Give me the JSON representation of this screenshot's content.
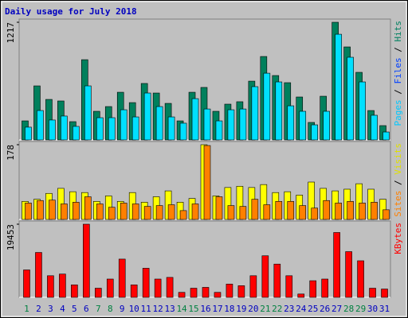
{
  "title": "Daily usage for July 2018",
  "chart_data": [
    {
      "type": "bar",
      "categories": [
        "1",
        "2",
        "3",
        "4",
        "5",
        "6",
        "7",
        "8",
        "9",
        "10",
        "11",
        "12",
        "13",
        "14",
        "15",
        "16",
        "17",
        "18",
        "19",
        "20",
        "21",
        "22",
        "23",
        "24",
        "25",
        "26",
        "27",
        "28",
        "29",
        "30",
        "31"
      ],
      "category_colors": [
        "#008040",
        "#0000c0",
        "#0000c0",
        "#0000c0",
        "#0000c0",
        "#0000c0",
        "#008040",
        "#008040",
        "#0000c0",
        "#0000c0",
        "#0000c0",
        "#0000c0",
        "#0000c0",
        "#008040",
        "#008040",
        "#0000c0",
        "#0000c0",
        "#0000c0",
        "#0000c0",
        "#0000c0",
        "#008040",
        "#008040",
        "#0000c0",
        "#0000c0",
        "#0000c0",
        "#0000c0",
        "#0000c0",
        "#008040",
        "#008040",
        "#0000c0",
        "#0000c0"
      ],
      "ylim": [
        0,
        1217
      ],
      "yticks": [
        1217
      ],
      "legend": [
        {
          "text": "Pages",
          "color": "#00c8ff"
        },
        {
          "text": " / ",
          "color": "#000000"
        },
        {
          "text": "Files",
          "color": "#0040ff"
        },
        {
          "text": " / ",
          "color": "#000000"
        },
        {
          "text": "Hits",
          "color": "#008060"
        }
      ],
      "series": [
        {
          "name": "Hits",
          "color": "#00805c",
          "values": [
            197,
            559,
            419,
            403,
            189,
            830,
            296,
            345,
            493,
            386,
            584,
            485,
            378,
            197,
            493,
            543,
            296,
            370,
            395,
            608,
            863,
            666,
            592,
            444,
            181,
            452,
            1217,
            962,
            699,
            304,
            148
          ]
        },
        {
          "name": "Pages",
          "color": "#00e0ff",
          "values": [
            132,
            304,
            206,
            247,
            140,
            559,
            230,
            230,
            312,
            238,
            485,
            345,
            238,
            173,
            427,
            320,
            197,
            312,
            320,
            551,
            690,
            600,
            353,
            296,
            156,
            296,
            1093,
            855,
            600,
            255,
            82
          ]
        }
      ]
    },
    {
      "type": "bar",
      "ylim": [
        0,
        178
      ],
      "yticks": [
        178
      ],
      "legend": [
        {
          "text": "Sites",
          "color": "#ff8000"
        },
        {
          "text": " / ",
          "color": "#000000"
        },
        {
          "text": "Visits",
          "color": "#e0e000"
        }
      ],
      "series": [
        {
          "name": "Visits",
          "color": "#ffff00",
          "values": [
            43,
            48,
            62,
            74,
            66,
            64,
            43,
            56,
            43,
            64,
            41,
            54,
            68,
            41,
            50,
            178,
            56,
            76,
            79,
            76,
            83,
            64,
            66,
            58,
            89,
            74,
            68,
            72,
            85,
            72,
            48
          ]
        },
        {
          "name": "Sites",
          "color": "#ff8000",
          "values": [
            39,
            45,
            46,
            37,
            41,
            54,
            37,
            29,
            39,
            37,
            31,
            33,
            35,
            21,
            37,
            176,
            54,
            33,
            31,
            48,
            35,
            43,
            43,
            33,
            27,
            45,
            39,
            43,
            39,
            41,
            23
          ]
        }
      ]
    },
    {
      "type": "bar",
      "ylim": [
        0,
        19453
      ],
      "yticks": [
        19453
      ],
      "legend": [
        {
          "text": "KBytes",
          "color": "#ff0000"
        }
      ],
      "series": [
        {
          "name": "KBytes",
          "color": "#ff0000",
          "values": [
            7295,
            11936,
            5748,
            6190,
            3315,
            19453,
            2431,
            4863,
            10168,
            3315,
            7737,
            4863,
            5305,
            1326,
            2431,
            2652,
            1326,
            3536,
            3094,
            5748,
            11052,
            8842,
            5748,
            884,
            4421,
            4863,
            17242,
            12157,
            9726,
            2431,
            2210
          ]
        }
      ]
    }
  ]
}
